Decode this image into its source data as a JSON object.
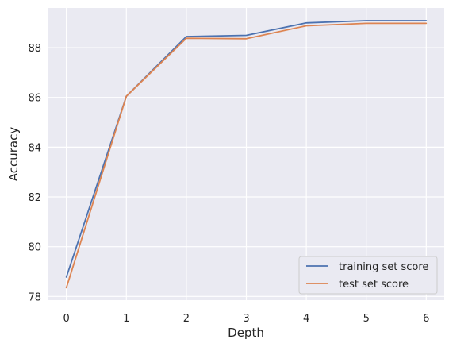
{
  "chart_data": {
    "type": "line",
    "title": "",
    "xlabel": "Depth",
    "ylabel": "Accuracy",
    "x": [
      0,
      1,
      2,
      3,
      4,
      5,
      6
    ],
    "xticks": [
      "0",
      "1",
      "2",
      "3",
      "4",
      "5",
      "6"
    ],
    "yticks": [
      "78",
      "80",
      "82",
      "84",
      "86",
      "88"
    ],
    "xlim": [
      -0.3,
      6.3
    ],
    "ylim": [
      77.85,
      89.6
    ],
    "grid": true,
    "legend_position": "bottom-right",
    "series": [
      {
        "name": "training set score",
        "color": "#4c72b0",
        "values": [
          78.78,
          86.05,
          88.45,
          88.5,
          89.0,
          89.09,
          89.09
        ]
      },
      {
        "name": "test set score",
        "color": "#dd8452",
        "values": [
          78.35,
          86.05,
          88.38,
          88.36,
          88.88,
          88.98,
          88.98
        ]
      }
    ]
  }
}
